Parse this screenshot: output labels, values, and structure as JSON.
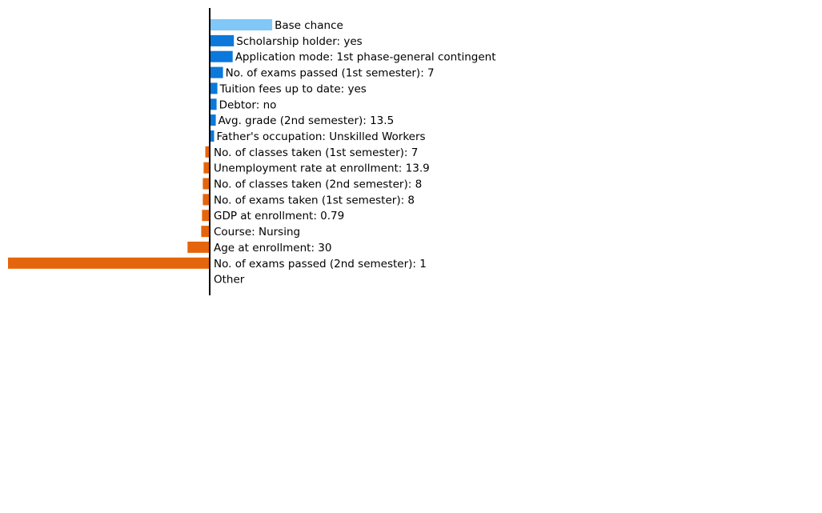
{
  "chart_data": {
    "type": "bar",
    "orientation": "horizontal",
    "colors": {
      "base": "#7fc8f8",
      "positive": "#0b78dc",
      "negative": "#e5650c",
      "axis": "#000000"
    },
    "bars": [
      {
        "label": "Base chance",
        "value": 0.155,
        "kind": "base"
      },
      {
        "label": "Scholarship holder: yes",
        "value": 0.06,
        "kind": "positive"
      },
      {
        "label": "Application mode: 1st phase-general contingent",
        "value": 0.057,
        "kind": "positive"
      },
      {
        "label": "No. of exams passed (1st semester): 7",
        "value": 0.033,
        "kind": "positive"
      },
      {
        "label": "Tuition fees up to date: yes",
        "value": 0.019,
        "kind": "positive"
      },
      {
        "label": "Debtor: no",
        "value": 0.017,
        "kind": "positive"
      },
      {
        "label": "Avg. grade (2nd semester): 13.5",
        "value": 0.015,
        "kind": "positive"
      },
      {
        "label": "Father's occupation: Unskilled Workers",
        "value": 0.011,
        "kind": "positive"
      },
      {
        "label": "No. of classes taken (1st semester): 7",
        "value": -0.011,
        "kind": "negative"
      },
      {
        "label": "Unemployment rate at enrollment: 13.9",
        "value": -0.015,
        "kind": "negative"
      },
      {
        "label": "No. of classes taken (2nd semester): 8",
        "value": -0.017,
        "kind": "negative"
      },
      {
        "label": "No. of exams taken (1st semester): 8",
        "value": -0.017,
        "kind": "negative"
      },
      {
        "label": "GDP at enrollment: 0.79",
        "value": -0.019,
        "kind": "negative"
      },
      {
        "label": "Course: Nursing",
        "value": -0.021,
        "kind": "negative"
      },
      {
        "label": "Age at enrollment: 30",
        "value": -0.055,
        "kind": "negative"
      },
      {
        "label": "No. of exams passed (2nd semester): 1",
        "value": -0.5,
        "kind": "negative"
      },
      {
        "label": "Other",
        "value": 0,
        "kind": "positive"
      }
    ],
    "xlim": [
      -0.5,
      1.0
    ],
    "grid": false,
    "legend": "none"
  }
}
